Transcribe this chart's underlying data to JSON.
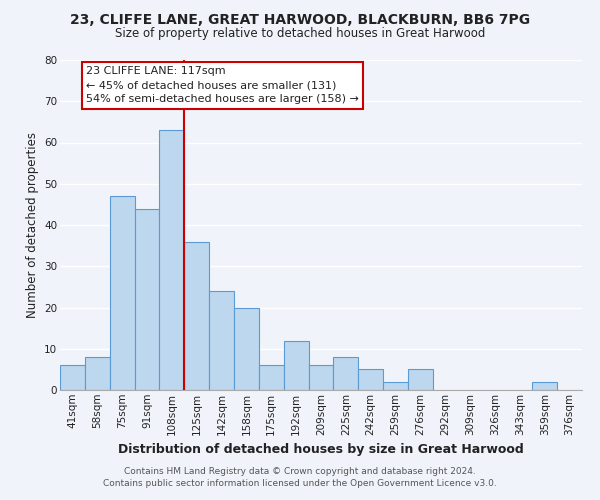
{
  "title": "23, CLIFFE LANE, GREAT HARWOOD, BLACKBURN, BB6 7PG",
  "subtitle": "Size of property relative to detached houses in Great Harwood",
  "xlabel": "Distribution of detached houses by size in Great Harwood",
  "ylabel": "Number of detached properties",
  "bar_labels": [
    "41sqm",
    "58sqm",
    "75sqm",
    "91sqm",
    "108sqm",
    "125sqm",
    "142sqm",
    "158sqm",
    "175sqm",
    "192sqm",
    "209sqm",
    "225sqm",
    "242sqm",
    "259sqm",
    "276sqm",
    "292sqm",
    "309sqm",
    "326sqm",
    "343sqm",
    "359sqm",
    "376sqm"
  ],
  "bar_values": [
    6,
    8,
    47,
    44,
    63,
    36,
    24,
    20,
    6,
    12,
    6,
    8,
    5,
    2,
    5,
    0,
    0,
    0,
    0,
    2,
    0
  ],
  "bar_color": "#bdd7ee",
  "bar_edge_color": "#5b9bd5",
  "vline_x": 4.5,
  "vline_color": "#cc0000",
  "ylim": [
    0,
    80
  ],
  "yticks": [
    0,
    10,
    20,
    30,
    40,
    50,
    60,
    70,
    80
  ],
  "annotation_text": "23 CLIFFE LANE: 117sqm\n← 45% of detached houses are smaller (131)\n54% of semi-detached houses are larger (158) →",
  "annotation_box_color": "#ffffff",
  "annotation_box_edge": "#cc0000",
  "background_color": "#f0f4fa",
  "grid_color": "#ffffff",
  "footer1": "Contains HM Land Registry data © Crown copyright and database right 2024.",
  "footer2": "Contains public sector information licensed under the Open Government Licence v3.0.",
  "title_fontsize": 10,
  "subtitle_fontsize": 8.5,
  "xlabel_fontsize": 9,
  "ylabel_fontsize": 8.5,
  "footer_fontsize": 6.5,
  "tick_fontsize": 7.5,
  "annot_fontsize": 8
}
